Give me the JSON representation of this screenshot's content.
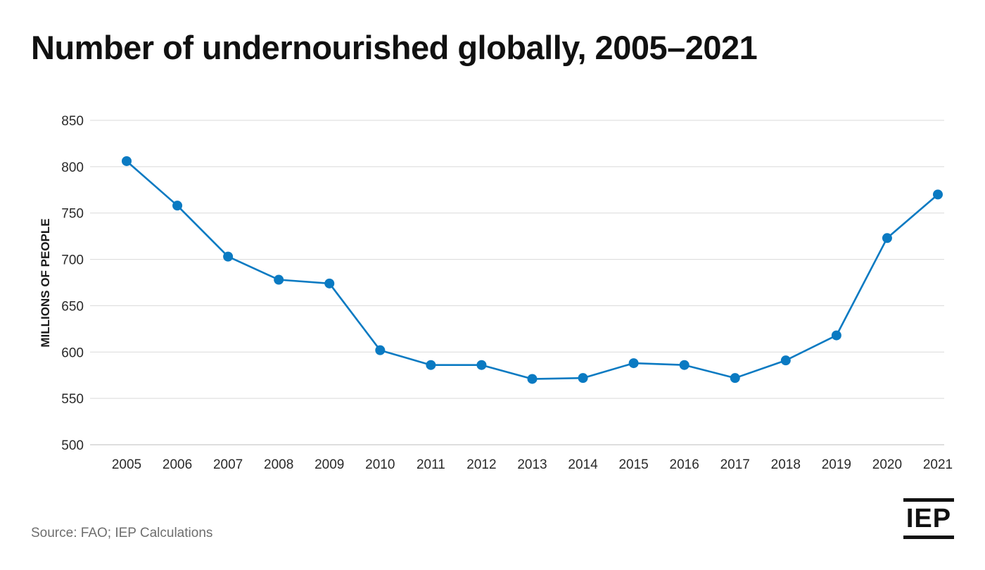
{
  "chart_data": {
    "type": "line",
    "title": "Number of undernourished globally, 2005–2021",
    "xlabel": "",
    "ylabel": "MILLIONS OF PEOPLE",
    "ylim": [
      500,
      850
    ],
    "yticks": [
      500,
      550,
      600,
      650,
      700,
      750,
      800,
      850
    ],
    "grid": "horizontal",
    "legend": "none",
    "color": "#0a7ac2",
    "categories": [
      "2005",
      "2006",
      "2007",
      "2008",
      "2009",
      "2010",
      "2011",
      "2012",
      "2013",
      "2014",
      "2015",
      "2016",
      "2017",
      "2018",
      "2019",
      "2020",
      "2021"
    ],
    "values": [
      806,
      758,
      703,
      678,
      674,
      602,
      586,
      586,
      571,
      572,
      588,
      586,
      572,
      591,
      618,
      723,
      770
    ]
  },
  "source": "Source: FAO; IEP Calculations",
  "brand": {
    "logo_text": "IEP"
  }
}
